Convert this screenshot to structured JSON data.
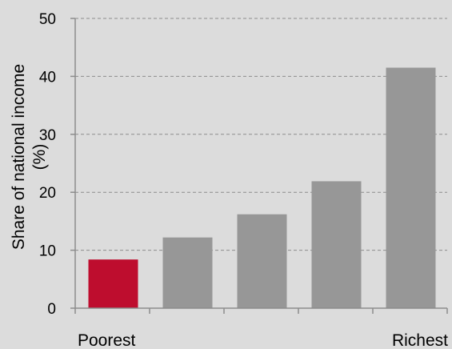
{
  "chart_data": {
    "type": "bar",
    "title": "",
    "xlabel": "",
    "ylabel": "Share of national income (%)",
    "ylabel_lines": [
      "Share of national income",
      "(%)"
    ],
    "ylim": [
      0,
      50
    ],
    "yticks": [
      "0",
      "10",
      "20",
      "30",
      "40",
      "50"
    ],
    "grid": "horizontal dashed",
    "categories": [
      "Poorest",
      "",
      "",
      "",
      "Richest"
    ],
    "values": [
      8.4,
      12.2,
      16.2,
      21.9,
      41.5
    ],
    "highlight_index": 0
  },
  "colors": {
    "background": "#dcdcdc",
    "bar": "#979797",
    "highlight": "#be0d2e",
    "grid": "#8c8c8c",
    "axis": "#8c8c8c"
  }
}
